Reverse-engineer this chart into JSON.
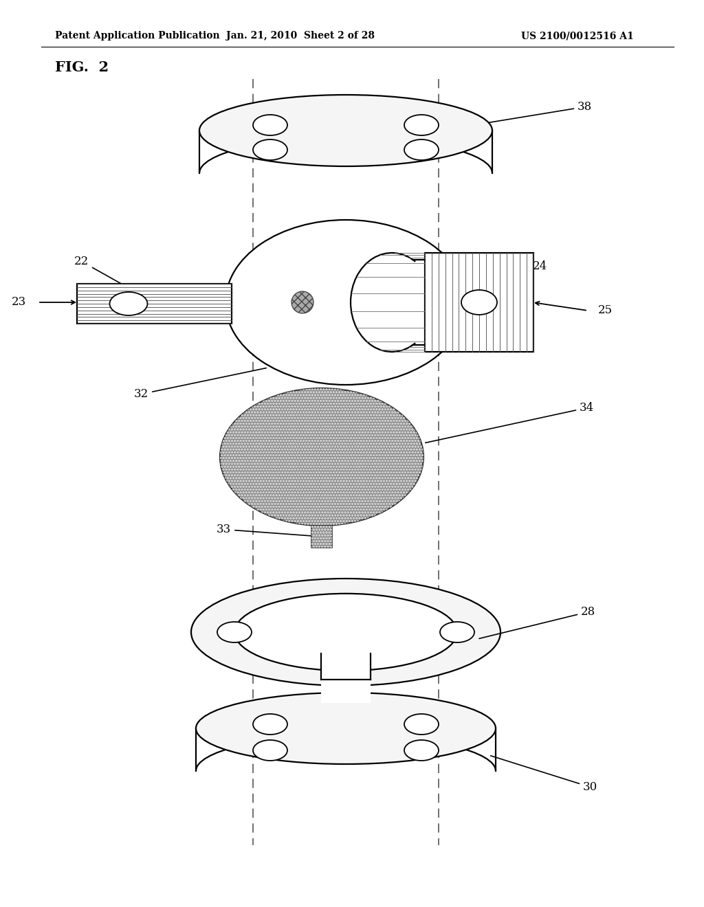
{
  "background_color": "#ffffff",
  "line_color": "#000000",
  "header_pub": "Patent Application Publication",
  "header_date": "Jan. 21, 2010  Sheet 2 of 28",
  "header_num": "US 2100/0012516 A1",
  "fig_label": "FIG.  2"
}
